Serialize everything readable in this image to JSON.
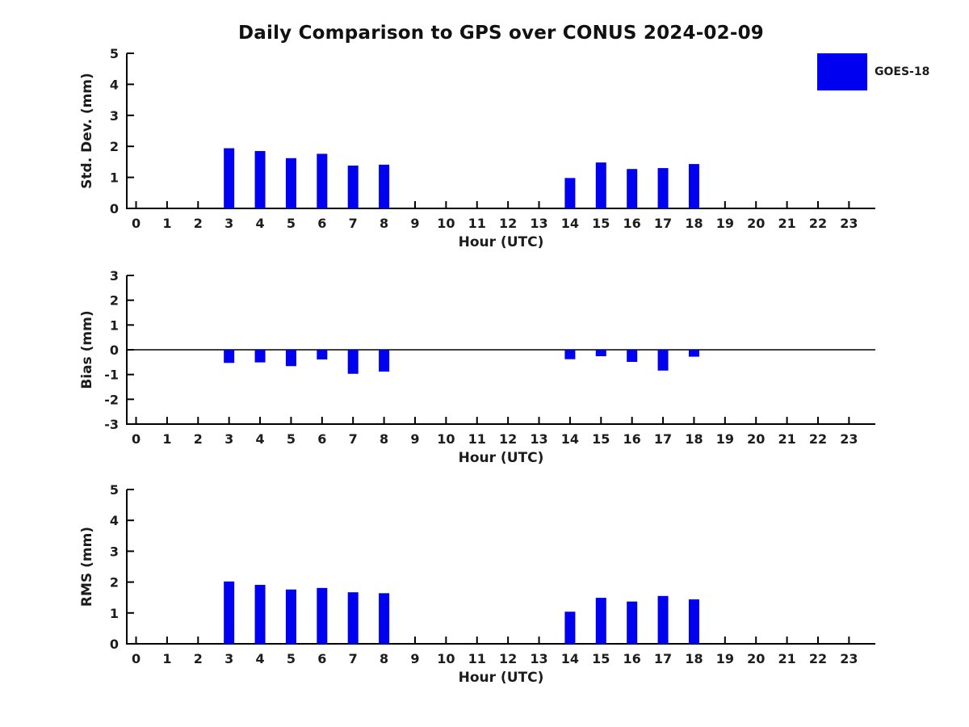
{
  "title": "Daily Comparison to GPS over CONUS 2024-02-09",
  "legend": {
    "label": "GOES-18",
    "swatch_color": "#0000f0"
  },
  "colors": {
    "bar": "#0000f0",
    "axis": "#000000",
    "text": "#1c1c1c"
  },
  "chart_data": [
    {
      "type": "bar",
      "name": "std-dev",
      "ylabel": "Std. Dev. (mm)",
      "xlabel": "Hour (UTC)",
      "ylim": [
        0,
        5
      ],
      "yticks": [
        0,
        1,
        2,
        3,
        4,
        5
      ],
      "zero_line": false,
      "categories": [
        0,
        1,
        2,
        3,
        4,
        5,
        6,
        7,
        8,
        9,
        10,
        11,
        12,
        13,
        14,
        15,
        16,
        17,
        18,
        19,
        20,
        21,
        22,
        23
      ],
      "series": [
        {
          "name": "GOES-18",
          "values": [
            null,
            null,
            null,
            1.94,
            1.85,
            1.62,
            1.76,
            1.38,
            1.41,
            null,
            null,
            null,
            null,
            null,
            0.98,
            1.48,
            1.27,
            1.3,
            1.43,
            null,
            null,
            null,
            null,
            null
          ]
        }
      ]
    },
    {
      "type": "bar",
      "name": "bias",
      "ylabel": "Bias (mm)",
      "xlabel": "Hour (UTC)",
      "ylim": [
        -3,
        3
      ],
      "yticks": [
        3,
        2,
        1,
        0,
        -1,
        -2,
        -3
      ],
      "zero_line": true,
      "categories": [
        0,
        1,
        2,
        3,
        4,
        5,
        6,
        7,
        8,
        9,
        10,
        11,
        12,
        13,
        14,
        15,
        16,
        17,
        18,
        19,
        20,
        21,
        22,
        23
      ],
      "series": [
        {
          "name": "GOES-18",
          "values": [
            null,
            null,
            null,
            -0.53,
            -0.51,
            -0.66,
            -0.39,
            -0.97,
            -0.88,
            null,
            null,
            null,
            null,
            null,
            -0.38,
            -0.26,
            -0.49,
            -0.84,
            -0.28,
            null,
            null,
            null,
            null,
            null
          ]
        }
      ]
    },
    {
      "type": "bar",
      "name": "rms",
      "ylabel": "RMS (mm)",
      "xlabel": "Hour (UTC)",
      "ylim": [
        0,
        5
      ],
      "yticks": [
        0,
        1,
        2,
        3,
        4,
        5
      ],
      "zero_line": false,
      "categories": [
        0,
        1,
        2,
        3,
        4,
        5,
        6,
        7,
        8,
        9,
        10,
        11,
        12,
        13,
        14,
        15,
        16,
        17,
        18,
        19,
        20,
        21,
        22,
        23
      ],
      "series": [
        {
          "name": "GOES-18",
          "values": [
            null,
            null,
            null,
            2.02,
            1.91,
            1.76,
            1.81,
            1.67,
            1.64,
            null,
            null,
            null,
            null,
            null,
            1.04,
            1.49,
            1.37,
            1.55,
            1.44,
            null,
            null,
            null,
            null,
            null
          ]
        }
      ]
    }
  ]
}
